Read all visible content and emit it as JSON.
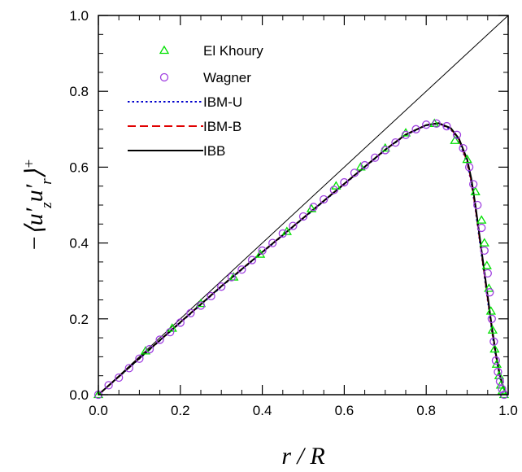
{
  "chart_data": {
    "type": "line",
    "xlabel": "r / R",
    "ylabel": "−⟨u′zu′r⟩+",
    "xlim": [
      0.0,
      1.0
    ],
    "ylim": [
      0.0,
      1.0
    ],
    "x_ticks": [
      "0.0",
      "0.2",
      "0.4",
      "0.6",
      "0.8",
      "1.0"
    ],
    "y_ticks": [
      "0.0",
      "0.2",
      "0.4",
      "0.6",
      "0.8",
      "1.0"
    ],
    "grid": false,
    "legend_position": "top-left",
    "reference_line": {
      "from": [
        0.0,
        0.0
      ],
      "to": [
        1.0,
        1.0
      ]
    },
    "series": [
      {
        "name": "El Khoury",
        "style": "markers",
        "marker": "triangle",
        "color": "#00e000",
        "x": [
          0.0,
          0.115,
          0.18,
          0.25,
          0.33,
          0.395,
          0.46,
          0.52,
          0.58,
          0.64,
          0.7,
          0.75,
          0.82,
          0.87,
          0.9,
          0.92,
          0.935,
          0.942,
          0.948,
          0.953,
          0.958,
          0.962,
          0.967,
          0.972,
          0.978,
          0.982,
          0.986,
          0.99
        ],
        "y": [
          0.0,
          0.115,
          0.175,
          0.24,
          0.31,
          0.37,
          0.43,
          0.49,
          0.55,
          0.6,
          0.65,
          0.69,
          0.715,
          0.67,
          0.62,
          0.535,
          0.46,
          0.4,
          0.34,
          0.28,
          0.22,
          0.17,
          0.12,
          0.08,
          0.05,
          0.025,
          0.01,
          0.0
        ]
      },
      {
        "name": "Wagner",
        "style": "markers",
        "marker": "circle",
        "color": "#a040e0",
        "x": [
          0.0,
          0.025,
          0.05,
          0.075,
          0.1,
          0.125,
          0.15,
          0.175,
          0.2,
          0.225,
          0.25,
          0.275,
          0.3,
          0.325,
          0.35,
          0.375,
          0.4,
          0.425,
          0.45,
          0.475,
          0.5,
          0.525,
          0.55,
          0.575,
          0.6,
          0.625,
          0.65,
          0.675,
          0.7,
          0.725,
          0.75,
          0.775,
          0.8,
          0.825,
          0.85,
          0.875,
          0.89,
          0.905,
          0.915,
          0.925,
          0.935,
          0.942,
          0.95,
          0.955,
          0.96,
          0.965,
          0.97,
          0.975,
          0.98,
          0.985,
          0.99
        ],
        "y": [
          0.0,
          0.025,
          0.045,
          0.07,
          0.095,
          0.12,
          0.145,
          0.165,
          0.19,
          0.215,
          0.235,
          0.26,
          0.285,
          0.31,
          0.33,
          0.355,
          0.38,
          0.4,
          0.425,
          0.445,
          0.47,
          0.495,
          0.515,
          0.54,
          0.56,
          0.585,
          0.605,
          0.625,
          0.645,
          0.665,
          0.685,
          0.7,
          0.712,
          0.715,
          0.708,
          0.685,
          0.65,
          0.6,
          0.555,
          0.5,
          0.44,
          0.38,
          0.32,
          0.27,
          0.2,
          0.14,
          0.09,
          0.06,
          0.035,
          0.015,
          0.0
        ]
      },
      {
        "name": "IBM-U",
        "style": "dotted-line",
        "color": "#0000cc",
        "x": [
          0.0,
          0.1,
          0.2,
          0.3,
          0.4,
          0.5,
          0.6,
          0.7,
          0.75,
          0.8,
          0.83,
          0.86,
          0.88,
          0.9,
          0.91,
          0.92,
          0.93,
          0.94,
          0.95,
          0.96,
          0.97,
          0.98,
          0.99,
          1.0
        ],
        "y": [
          0.0,
          0.095,
          0.19,
          0.285,
          0.375,
          0.465,
          0.555,
          0.645,
          0.685,
          0.71,
          0.715,
          0.7,
          0.67,
          0.61,
          0.56,
          0.49,
          0.41,
          0.33,
          0.25,
          0.17,
          0.1,
          0.045,
          0.012,
          0.0
        ]
      },
      {
        "name": "IBM-B",
        "style": "dashed-line",
        "color": "#e00000",
        "x": [
          0.0,
          0.1,
          0.2,
          0.3,
          0.4,
          0.5,
          0.6,
          0.7,
          0.75,
          0.8,
          0.83,
          0.86,
          0.88,
          0.9,
          0.91,
          0.92,
          0.93,
          0.94,
          0.95,
          0.96,
          0.97,
          0.98,
          0.99,
          1.0
        ],
        "y": [
          0.0,
          0.096,
          0.191,
          0.286,
          0.376,
          0.466,
          0.556,
          0.646,
          0.686,
          0.711,
          0.716,
          0.702,
          0.673,
          0.615,
          0.565,
          0.495,
          0.415,
          0.335,
          0.255,
          0.175,
          0.104,
          0.048,
          0.013,
          0.0
        ]
      },
      {
        "name": "IBB",
        "style": "solid-line",
        "color": "#000000",
        "x": [
          0.0,
          0.1,
          0.2,
          0.3,
          0.4,
          0.5,
          0.6,
          0.7,
          0.75,
          0.8,
          0.83,
          0.86,
          0.88,
          0.9,
          0.91,
          0.92,
          0.93,
          0.94,
          0.95,
          0.96,
          0.97,
          0.98,
          0.99,
          1.0
        ],
        "y": [
          0.0,
          0.096,
          0.191,
          0.286,
          0.376,
          0.466,
          0.556,
          0.646,
          0.686,
          0.711,
          0.716,
          0.703,
          0.675,
          0.62,
          0.57,
          0.5,
          0.42,
          0.34,
          0.26,
          0.18,
          0.108,
          0.05,
          0.014,
          0.0
        ]
      }
    ]
  }
}
